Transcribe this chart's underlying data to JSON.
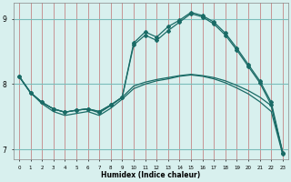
{
  "xlabel": "Humidex (Indice chaleur)",
  "background_color": "#d8f0ee",
  "grid_color_v": "#c06060",
  "grid_color_h": "#7bbcba",
  "line_color": "#1a6b66",
  "xlim": [
    -0.5,
    23.5
  ],
  "ylim": [
    6.85,
    9.25
  ],
  "yticks": [
    7,
    8,
    9
  ],
  "xticks": [
    0,
    1,
    2,
    3,
    4,
    5,
    6,
    7,
    8,
    9,
    10,
    11,
    12,
    13,
    14,
    15,
    16,
    17,
    18,
    19,
    20,
    21,
    22,
    23
  ],
  "series1_x": [
    0,
    1,
    2,
    3,
    4,
    5,
    6,
    7,
    8,
    9,
    10,
    11,
    12,
    13,
    14,
    15,
    16,
    17,
    18,
    19,
    20,
    21,
    22,
    23
  ],
  "series1_y": [
    8.12,
    7.87,
    7.72,
    7.62,
    7.57,
    7.6,
    7.62,
    7.56,
    7.67,
    7.8,
    7.97,
    8.03,
    8.07,
    8.1,
    8.13,
    8.15,
    8.13,
    8.1,
    8.05,
    7.98,
    7.9,
    7.8,
    7.67,
    6.95
  ],
  "series2_x": [
    0,
    1,
    2,
    3,
    4,
    5,
    6,
    7,
    8,
    9,
    10,
    11,
    12,
    13,
    14,
    15,
    16,
    17,
    18,
    19,
    20,
    21,
    22,
    23
  ],
  "series2_y": [
    8.12,
    7.87,
    7.7,
    7.58,
    7.52,
    7.55,
    7.58,
    7.52,
    7.63,
    7.77,
    7.93,
    8.0,
    8.05,
    8.08,
    8.12,
    8.14,
    8.12,
    8.08,
    8.02,
    7.94,
    7.85,
    7.73,
    7.58,
    6.92
  ],
  "series3_x": [
    0,
    1,
    2,
    3,
    4,
    5,
    6,
    7,
    8,
    9,
    10,
    11,
    12,
    13,
    14,
    15,
    16,
    17,
    18,
    19,
    20,
    21,
    22,
    23
  ],
  "series3_y": [
    8.12,
    7.87,
    7.72,
    7.62,
    7.57,
    7.6,
    7.62,
    7.58,
    7.68,
    7.8,
    8.63,
    8.8,
    8.72,
    8.88,
    8.98,
    9.1,
    9.05,
    8.95,
    8.78,
    8.55,
    8.3,
    8.05,
    7.72,
    6.95
  ],
  "series4_x": [
    0,
    1,
    2,
    3,
    4,
    5,
    6,
    7,
    8,
    9,
    10,
    11,
    12,
    13,
    14,
    15,
    16,
    17,
    18,
    19,
    20,
    21,
    22,
    23
  ],
  "series4_y": [
    8.12,
    7.87,
    7.72,
    7.62,
    7.57,
    7.6,
    7.62,
    7.58,
    7.68,
    7.8,
    8.6,
    8.75,
    8.67,
    8.82,
    8.95,
    9.08,
    9.03,
    8.92,
    8.75,
    8.52,
    8.27,
    8.02,
    7.68,
    6.93
  ]
}
